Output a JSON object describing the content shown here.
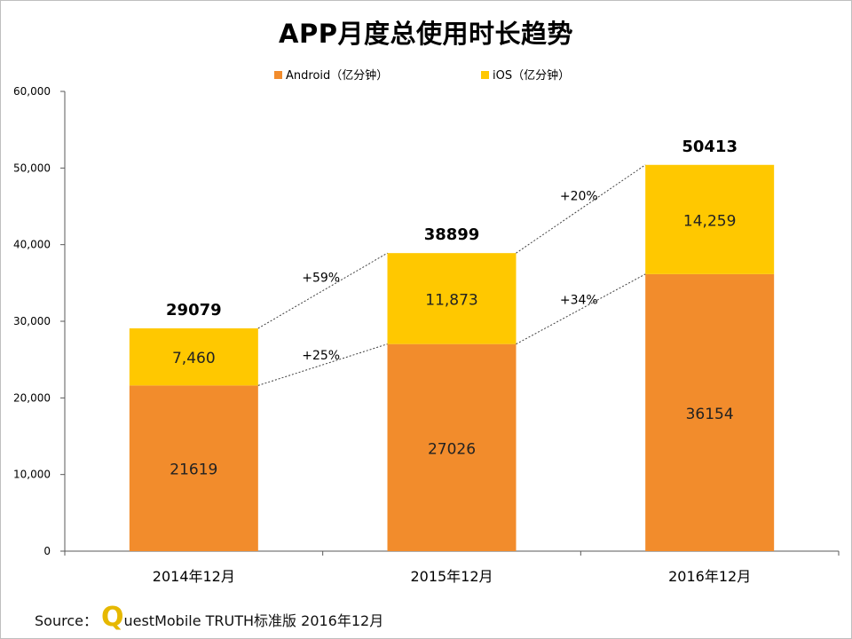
{
  "chart_data": {
    "type": "bar",
    "stacked": true,
    "title": "APP月度总使用时长趋势",
    "categories": [
      "2014年12月",
      "2015年12月",
      "2016年12月"
    ],
    "series": [
      {
        "name": "Android（亿分钟）",
        "color": "#f28c2c",
        "values": [
          21619,
          27026,
          36154
        ],
        "labels": [
          "21619",
          "27026",
          "36154"
        ]
      },
      {
        "name": "iOS（亿分钟）",
        "color": "#ffc800",
        "values": [
          7460,
          11873,
          14259
        ],
        "labels": [
          "7,460",
          "11,873",
          "14,259"
        ]
      }
    ],
    "totals": [
      "29079",
      "38899",
      "50413"
    ],
    "growth": {
      "total": [
        "+59%",
        "+20%"
      ],
      "android": [
        "+25%",
        "+34%"
      ]
    },
    "ylim": [
      0,
      60000
    ],
    "yticks": [
      0,
      10000,
      20000,
      30000,
      40000,
      50000,
      60000
    ],
    "ytick_labels": [
      "0",
      "10,000",
      "20,000",
      "30,000",
      "40,000",
      "50,000",
      "60,000"
    ],
    "legend_position": "top",
    "grid": false
  },
  "source": {
    "prefix": "Source：",
    "q": "Q",
    "rest": "uestMobile TRUTH标准版 2016年12月"
  }
}
